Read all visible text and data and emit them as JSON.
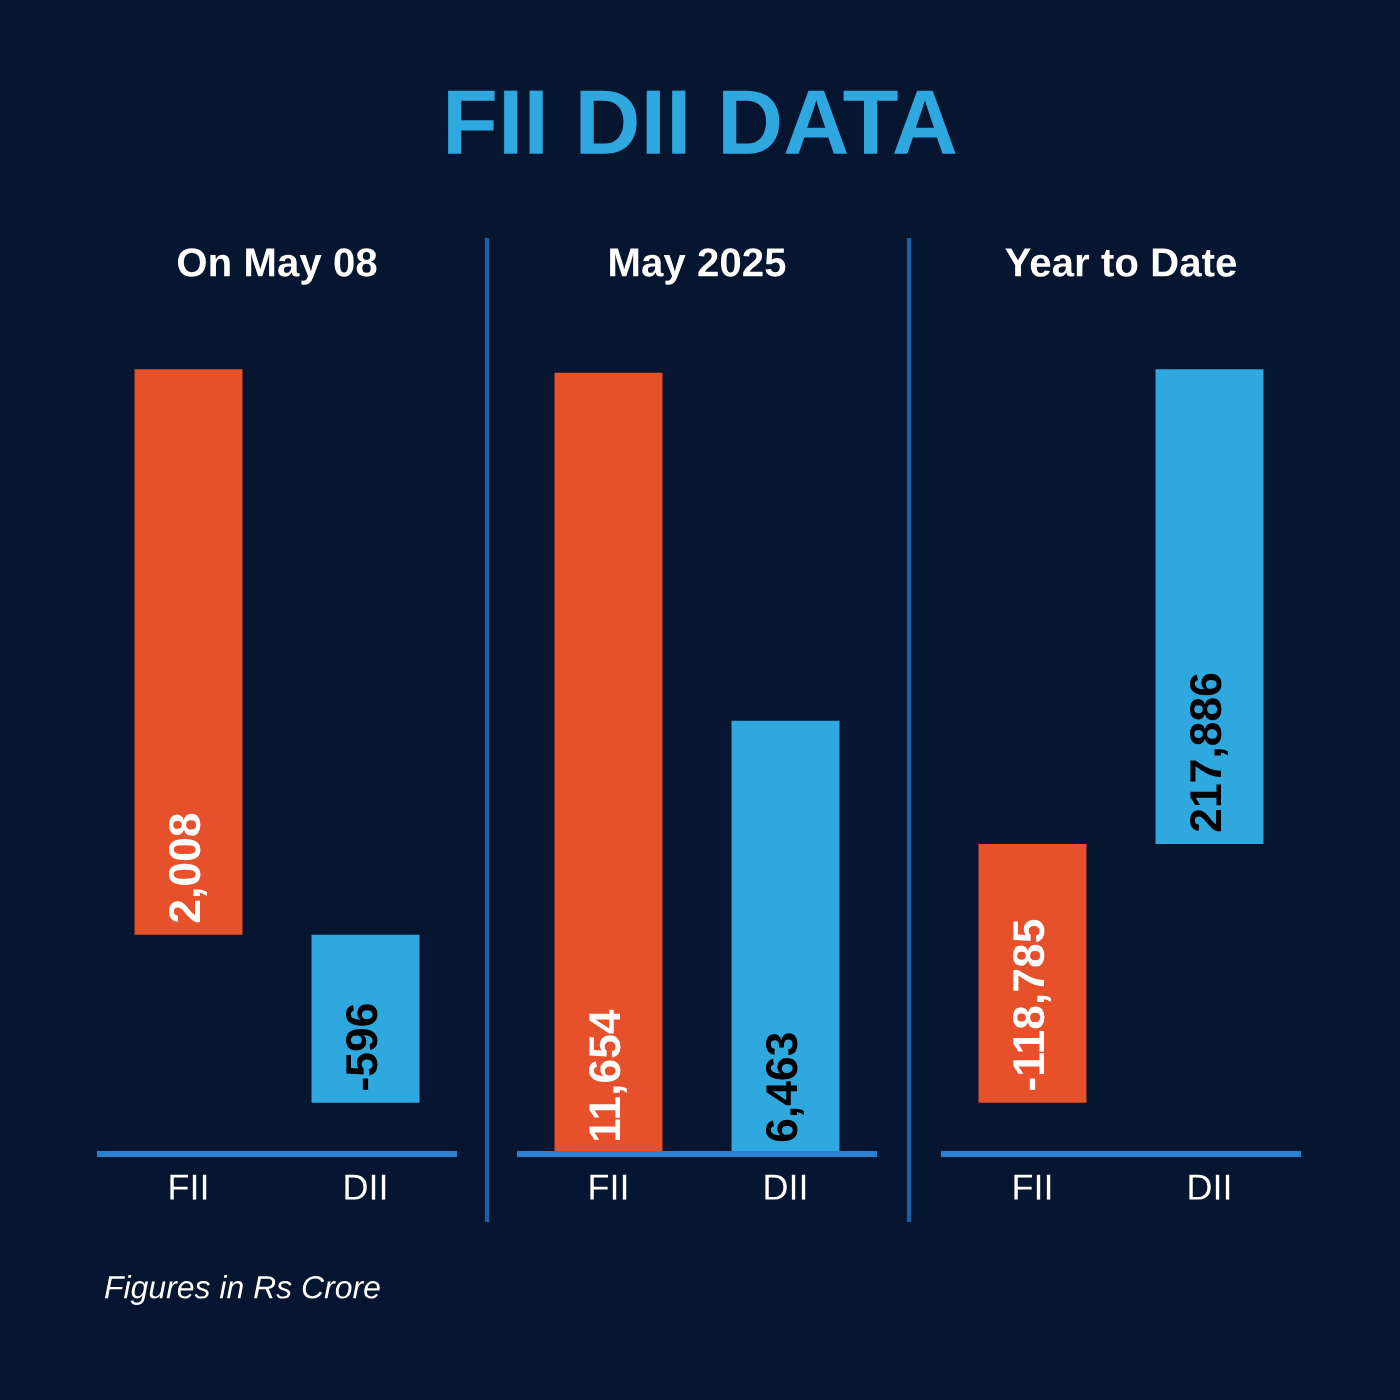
{
  "chart_data": [
    {
      "type": "other",
      "title": "FII DII DATA",
      "annotations": [
        "Figures in Rs Crore"
      ]
    },
    {
      "type": "bar",
      "title": "On May 08",
      "categories": [
        "FII",
        "DII"
      ],
      "values": [
        2008,
        -596
      ],
      "value_labels": [
        "2,008",
        "-596"
      ],
      "colors": [
        "#e6502a",
        "#2fa8e0"
      ],
      "tick_labels": "x"
    },
    {
      "type": "bar",
      "title": "May 2025",
      "categories": [
        "FII",
        "DII"
      ],
      "values": [
        11654,
        6463
      ],
      "value_labels": [
        "11,654",
        "6,463"
      ],
      "colors": [
        "#e6502a",
        "#2fa8e0"
      ],
      "tick_labels": "x"
    },
    {
      "type": "bar",
      "title": "Year to Date",
      "categories": [
        "FII",
        "DII"
      ],
      "values": [
        -118785,
        217886
      ],
      "value_labels": [
        "-118,785",
        "217,886"
      ],
      "colors": [
        "#e6502a",
        "#2fa8e0"
      ],
      "tick_labels": "x"
    }
  ]
}
